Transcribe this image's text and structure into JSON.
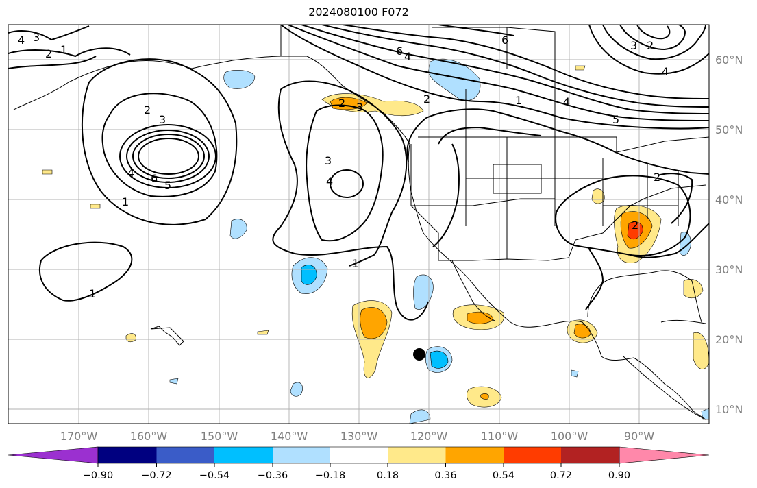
{
  "title": "2024080100 F072",
  "map": {
    "projection": "PlateCarree",
    "lon_range": [
      -180,
      -80
    ],
    "lat_range": [
      8,
      65
    ],
    "gridlines": true,
    "marker": {
      "lon": -120,
      "lat": 18,
      "shape": "filled-circle",
      "color": "#000000"
    }
  },
  "axes": {
    "lon_labels": [
      "170°W",
      "160°W",
      "150°W",
      "140°W",
      "130°W",
      "120°W",
      "110°W",
      "100°W",
      "90°W"
    ],
    "lat_labels": [
      "60°N",
      "50°N",
      "40°N",
      "30°N",
      "20°N",
      "10°N"
    ]
  },
  "contour_labels": [
    "3",
    "4",
    "2",
    "1",
    "2",
    "3",
    "4",
    "6",
    "5",
    "1",
    "1",
    "3",
    "4",
    "1",
    "2",
    "3",
    "4",
    "2",
    "6",
    "6",
    "4",
    "2",
    "3",
    "2",
    "5",
    "4",
    "2",
    "1"
  ],
  "colorbar": {
    "orientation": "horizontal",
    "extend": "both",
    "tick_labels": [
      "−0.90",
      "−0.72",
      "−0.54",
      "−0.36",
      "−0.18",
      "0.18",
      "0.36",
      "0.54",
      "0.72",
      "0.90"
    ],
    "colors": {
      "under": "#9b30d0",
      "bins": [
        "#000080",
        "#3a5cc8",
        "#00bfff",
        "#b0e0ff",
        "#ffffff",
        "#ffe98a",
        "#ffa500",
        "#ff3c00",
        "#b22222"
      ],
      "over": "#ff88aa"
    }
  }
}
